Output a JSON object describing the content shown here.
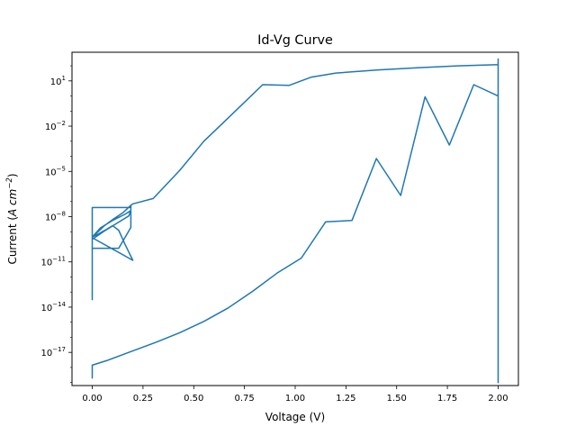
{
  "chart_data": {
    "type": "line",
    "title": "Id-Vg Curve",
    "xlabel": "Voltage (V)",
    "ylabel": "Current (A cm⁻²)",
    "ylabel_parts": {
      "pre": "Current (",
      "unit": "A cm",
      "exp": "−2",
      "post": ")"
    },
    "xscale": "linear",
    "yscale": "log",
    "xlim": [
      -0.1,
      2.1
    ],
    "ylim_log10": [
      -19.2,
      2.9
    ],
    "xticks": [
      {
        "value": 0.0,
        "label": "0.00"
      },
      {
        "value": 0.25,
        "label": "0.25"
      },
      {
        "value": 0.5,
        "label": "0.50"
      },
      {
        "value": 0.75,
        "label": "0.75"
      },
      {
        "value": 1.0,
        "label": "1.00"
      },
      {
        "value": 1.25,
        "label": "1.25"
      },
      {
        "value": 1.5,
        "label": "1.50"
      },
      {
        "value": 1.75,
        "label": "1.75"
      },
      {
        "value": 2.0,
        "label": "2.00"
      }
    ],
    "yticks": [
      {
        "exp": 1,
        "label_base": "10",
        "label_exp": "1"
      },
      {
        "exp": -2,
        "label_base": "10",
        "label_exp": "−2"
      },
      {
        "exp": -5,
        "label_base": "10",
        "label_exp": "−5"
      },
      {
        "exp": -8,
        "label_base": "10",
        "label_exp": "−8"
      },
      {
        "exp": -11,
        "label_base": "10",
        "label_exp": "−11"
      },
      {
        "exp": -14,
        "label_base": "10",
        "label_exp": "−14"
      },
      {
        "exp": -17,
        "label_base": "10",
        "label_exp": "−17"
      }
    ],
    "grid": false,
    "legend": "none",
    "line_color": "#1f77b4",
    "series": [
      {
        "x": [
          0.0,
          0.0,
          0.0,
          0.0,
          0.0,
          0.0,
          0.0,
          0.0,
          0.0,
          0.13,
          0.19,
          0.19,
          0.19,
          0.0,
          0.0,
          0.0,
          0.0,
          0.0,
          0.0,
          0.06,
          0.12,
          0.18,
          0.19,
          0.16,
          0.1,
          0.04,
          0.0,
          0.0,
          0.0,
          0.0,
          0.2,
          0.16,
          0.13,
          0.1,
          0.07,
          0.03,
          0.0,
          0.02,
          0.06,
          0.1,
          0.15,
          0.19,
          0.2,
          0.3,
          0.43,
          0.55,
          0.69,
          0.84,
          0.97,
          1.08,
          1.2,
          1.4,
          1.6,
          1.8,
          2.0,
          2.0,
          2.0,
          2.0,
          2.0,
          2.0,
          2.0,
          2.0,
          1.88,
          1.76,
          1.64,
          1.52,
          1.4,
          1.28,
          1.15,
          1.03,
          0.91,
          0.79,
          0.67,
          0.55,
          0.43,
          0.31,
          0.19,
          0.07,
          0.0,
          0.0,
          0.0
        ],
        "y_log10": [
          -9.55,
          -9.58,
          -9.4,
          -9.2,
          -9.95,
          -12.0,
          -13.5,
          -12.7,
          -10.1,
          -10.1,
          -8.72,
          -7.3,
          -7.4,
          -7.4,
          -7.45,
          -8.2,
          -8.25,
          -8.1,
          -9.5,
          -8.95,
          -8.45,
          -7.95,
          -7.6,
          -7.85,
          -8.25,
          -8.75,
          -9.35,
          -9.3,
          -9.35,
          -9.4,
          -10.9,
          -9.8,
          -8.9,
          -8.6,
          -8.85,
          -9.15,
          -9.35,
          -9.1,
          -8.6,
          -8.2,
          -7.75,
          -7.25,
          -7.15,
          -6.8,
          -4.95,
          -3.0,
          -1.2,
          0.75,
          0.7,
          1.25,
          1.52,
          1.72,
          1.87,
          2.0,
          2.08,
          2.45,
          2.2,
          -19.0,
          0.6,
          1.6,
          -18.6,
          0.0,
          0.75,
          -3.25,
          -0.05,
          -6.6,
          -4.15,
          -8.25,
          -8.35,
          -10.75,
          -11.75,
          -12.95,
          -14.05,
          -14.95,
          -15.7,
          -16.35,
          -16.95,
          -17.55,
          -17.85,
          -18.7,
          -17.95
        ]
      }
    ]
  }
}
